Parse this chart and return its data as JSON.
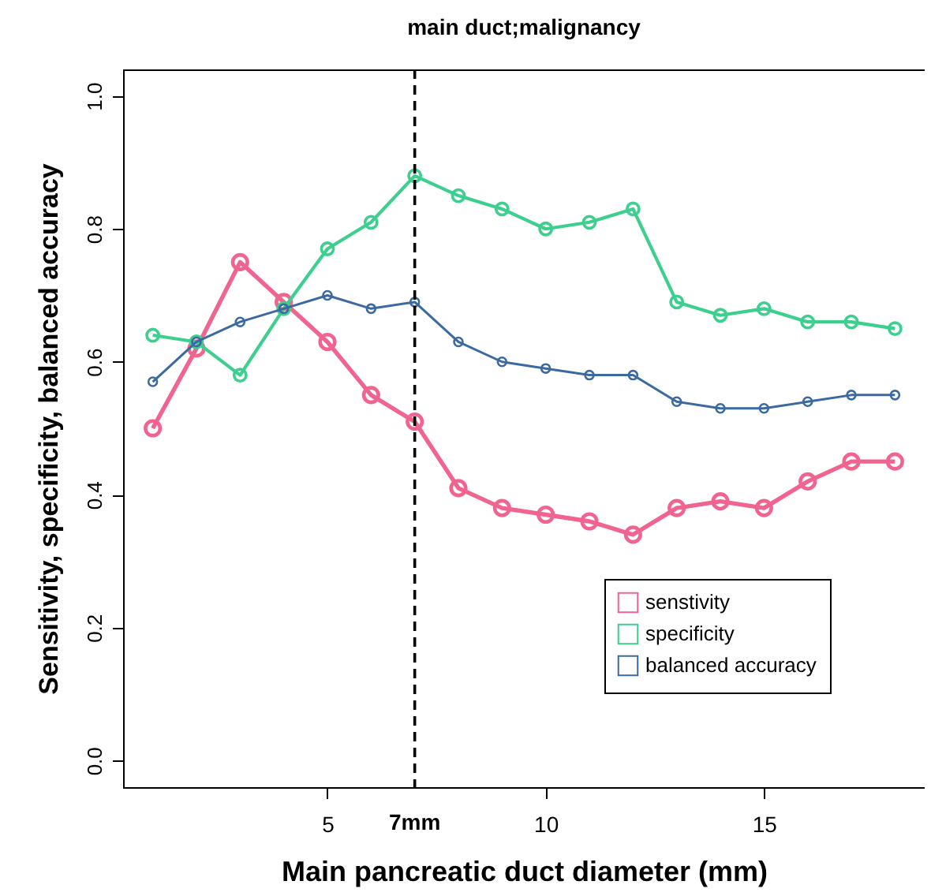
{
  "chart_data": {
    "type": "line",
    "title": "main duct;malignancy",
    "xlabel": "Main pancreatic duct diameter (mm)",
    "ylabel": "Sensitivity, specificity, balanced accuracy",
    "x": [
      1,
      2,
      3,
      4,
      5,
      6,
      7,
      8,
      9,
      10,
      11,
      12,
      13,
      14,
      15,
      16,
      17,
      18
    ],
    "series": [
      {
        "name": "senstivity",
        "color": "#f0648f",
        "values": [
          0.5,
          0.62,
          0.75,
          0.69,
          0.63,
          0.55,
          0.51,
          0.41,
          0.38,
          0.37,
          0.36,
          0.34,
          0.38,
          0.39,
          0.38,
          0.42,
          0.45,
          0.45
        ]
      },
      {
        "name": "specificity",
        "color": "#3ccf8e",
        "values": [
          0.64,
          0.63,
          0.58,
          0.68,
          0.77,
          0.81,
          0.88,
          0.85,
          0.83,
          0.8,
          0.81,
          0.83,
          0.69,
          0.67,
          0.68,
          0.66,
          0.66,
          0.65
        ]
      },
      {
        "name": "balanced accuracy",
        "color": "#3b6aa0",
        "values": [
          0.57,
          0.63,
          0.66,
          0.68,
          0.7,
          0.68,
          0.69,
          0.63,
          0.6,
          0.59,
          0.58,
          0.58,
          0.54,
          0.53,
          0.53,
          0.54,
          0.55,
          0.55
        ]
      }
    ],
    "xlim": [
      0.32,
      18.68
    ],
    "xticks": [
      5,
      10,
      15
    ],
    "ylim": [
      -0.04,
      1.04
    ],
    "yticks": [
      {
        "value": 0,
        "label": "0.0"
      },
      {
        "value": 0.2,
        "label": "0.2"
      },
      {
        "value": 0.4,
        "label": "0.4"
      },
      {
        "value": 0.6,
        "label": "0.6"
      },
      {
        "value": 0.8,
        "label": "0.8"
      },
      {
        "value": 1,
        "label": "1.0"
      }
    ],
    "ref_lines": [
      {
        "axis": "x",
        "value": 7,
        "label": "7mm",
        "color": "#000000",
        "line_style": "dashed"
      }
    ],
    "grid": false,
    "legend": "bottom right",
    "marker": "circle",
    "line_style": "solid"
  }
}
